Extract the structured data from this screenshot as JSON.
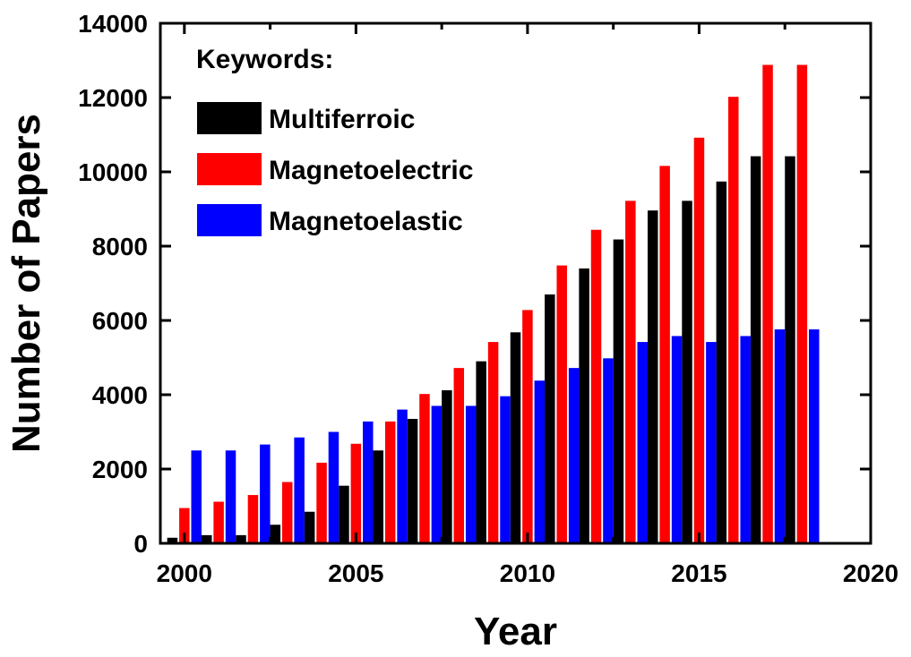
{
  "chart_data": {
    "type": "bar",
    "title": "",
    "xlabel": "Year",
    "ylabel": "Number of Papers",
    "xlim": [
      1999.3,
      2020
    ],
    "ylim": [
      0,
      14000
    ],
    "xticks": [
      2000,
      2005,
      2010,
      2015,
      2020
    ],
    "yticks": [
      0,
      2000,
      4000,
      6000,
      8000,
      10000,
      12000,
      14000
    ],
    "grid": false,
    "legend_title": "Keywords:",
    "legend_position": "top-left",
    "x": [
      2000,
      2001,
      2002,
      2003,
      2004,
      2005,
      2006,
      2007,
      2008,
      2009,
      2010,
      2011,
      2012,
      2013,
      2014,
      2015,
      2016,
      2017,
      2018
    ],
    "series": [
      {
        "name": "Multiferroic",
        "color": "#000000",
        "values": [
          150,
          220,
          220,
          500,
          850,
          1550,
          2500,
          3350,
          4120,
          4900,
          5680,
          6700,
          7400,
          8180,
          8960,
          9220,
          9740,
          10420,
          10420
        ]
      },
      {
        "name": "Magnetoelectric",
        "color": "#ff0000",
        "values": [
          950,
          1120,
          1300,
          1650,
          2170,
          2680,
          3280,
          4020,
          4720,
          5420,
          6280,
          7480,
          8440,
          9220,
          10160,
          10920,
          12020,
          12880,
          12880
        ]
      },
      {
        "name": "Magnetoelastic",
        "color": "#0000ff",
        "values": [
          2500,
          2500,
          2660,
          2850,
          3000,
          3280,
          3600,
          3700,
          3700,
          3960,
          4380,
          4720,
          4980,
          5420,
          5580,
          5420,
          5580,
          5760,
          5760
        ]
      }
    ]
  }
}
